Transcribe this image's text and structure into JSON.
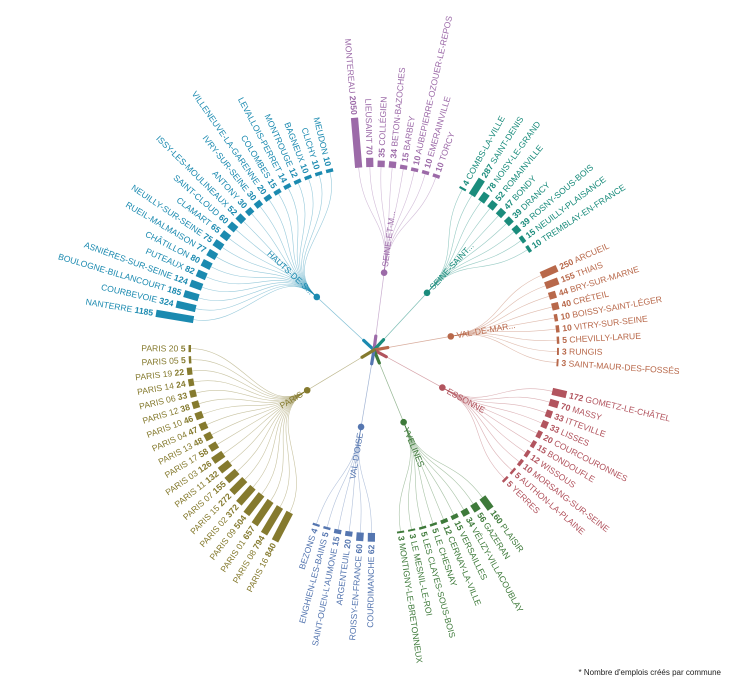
{
  "footnote": "* Nombre d'emplois créés par commune",
  "chart_data": {
    "type": "radial-dendrogram",
    "title": "",
    "value_label": "Nombre d'emplois créés par commune",
    "groups": [
      {
        "name": "HAUTS-DE-S...",
        "color": "#1b8ab0",
        "leaves": [
          {
            "name": "NANTERRE",
            "value": 1185
          },
          {
            "name": "COURBEVOIE",
            "value": 324
          },
          {
            "name": "BOULOGNE-BILLANCOURT",
            "value": 185
          },
          {
            "name": "ASNIÈRES-SUR-SEINE",
            "value": 124
          },
          {
            "name": "PUTEAUX",
            "value": 82
          },
          {
            "name": "CHÂTILLON",
            "value": 80
          },
          {
            "name": "RUEIL-MALMAISON",
            "value": 77
          },
          {
            "name": "NEUILLY-SUR-SEINE",
            "value": 75
          },
          {
            "name": "CLAMART",
            "value": 65
          },
          {
            "name": "SAINT-CLOUD",
            "value": 60
          },
          {
            "name": "ISSY-LES-MOULINEAUX",
            "value": 52
          },
          {
            "name": "ANTONY",
            "value": 30
          },
          {
            "name": "IVRY-SUR-SEINE",
            "value": 30
          },
          {
            "name": "VILLENEUVE-LA-GARENNE",
            "value": 20
          },
          {
            "name": "COLOMBES",
            "value": 15
          },
          {
            "name": "LEVALLOIS-PERRET",
            "value": 14
          },
          {
            "name": "MONTROUGE",
            "value": 12
          },
          {
            "name": "BAGNEUX",
            "value": 10
          },
          {
            "name": "CLICHY",
            "value": 10
          },
          {
            "name": "MEUDON",
            "value": 10
          }
        ]
      },
      {
        "name": "SEINE-ET-M...",
        "color": "#9c6aa8",
        "leaves": [
          {
            "name": "MONTEREAU",
            "value": 2050
          },
          {
            "name": "LIEUSAINT",
            "value": 70
          },
          {
            "name": "COLLÉGIEN",
            "value": 35
          },
          {
            "name": "BETON-BAZOCHES",
            "value": 34
          },
          {
            "name": "BARBEY",
            "value": 15
          },
          {
            "name": "AUBEPIERRE-OZOUER-LE-REPOS",
            "value": 10
          },
          {
            "name": "EMERAINVILLE",
            "value": 10
          },
          {
            "name": "TORCY",
            "value": 10
          }
        ]
      },
      {
        "name": "SEINE-SAINT...",
        "color": "#1a8c7c",
        "leaves": [
          {
            "name": "COMBS-LA-VILLE",
            "value": 4
          },
          {
            "name": "SAINT-DENIS",
            "value": 287
          },
          {
            "name": "NOISY-LE-GRAND",
            "value": 78
          },
          {
            "name": "ROMAINVILLE",
            "value": 52
          },
          {
            "name": "BONDY",
            "value": 47
          },
          {
            "name": "DRANCY",
            "value": 39
          },
          {
            "name": "ROSNY-SOUS-BOIS",
            "value": 39
          },
          {
            "name": "NEUILLY-PLAISANCE",
            "value": 15
          },
          {
            "name": "TREMBLAY-EN-FRANCE",
            "value": 10
          }
        ]
      },
      {
        "name": "VAL-DE-MAR...",
        "color": "#b8684a",
        "leaves": [
          {
            "name": "ARCUEIL",
            "value": 250
          },
          {
            "name": "THIAIS",
            "value": 155
          },
          {
            "name": "BRY-SUR-MARNE",
            "value": 44
          },
          {
            "name": "CRÉTEIL",
            "value": 40
          },
          {
            "name": "BOISSY-SAINT-LÉGER",
            "value": 10
          },
          {
            "name": "VITRY-SUR-SEINE",
            "value": 10
          },
          {
            "name": "CHEVILLY-LARUE",
            "value": 5
          },
          {
            "name": "RUNGIS",
            "value": 3
          },
          {
            "name": "SAINT-MAUR-DES-FOSSÉS",
            "value": 3
          }
        ]
      },
      {
        "name": "ESSONNE",
        "color": "#b2545e",
        "leaves": [
          {
            "name": "GOMETZ-LE-CHÂTEL",
            "value": 172
          },
          {
            "name": "MASSY",
            "value": 70
          },
          {
            "name": "ITTEVILLE",
            "value": 33
          },
          {
            "name": "LISSES",
            "value": 33
          },
          {
            "name": "COURCOURONNES",
            "value": 20
          },
          {
            "name": "BONDOUFLE",
            "value": 15
          },
          {
            "name": "WISSOUS",
            "value": 12
          },
          {
            "name": "MORSANG-SUR-SEINE",
            "value": 10
          },
          {
            "name": "AUTHON-LA-PLAINE",
            "value": 5
          },
          {
            "name": "YERRES",
            "value": 5
          }
        ]
      },
      {
        "name": "YVELINES",
        "color": "#3e7a3a",
        "leaves": [
          {
            "name": "PLAISIR",
            "value": 160
          },
          {
            "name": "GAZERAN",
            "value": 56
          },
          {
            "name": "VÉLIZY-VILLACOUBLAY",
            "value": 34
          },
          {
            "name": "VERSAILLES",
            "value": 15
          },
          {
            "name": "CERNAY-LA-VILLE",
            "value": 12
          },
          {
            "name": "LE CHESNAY",
            "value": 5
          },
          {
            "name": "LES CLAYES-SOUS-BOIS",
            "value": 5
          },
          {
            "name": "LE MESNIL-LE-ROI",
            "value": 3
          },
          {
            "name": "MONTIGNY-LE-BRETONNEUX",
            "value": 3
          }
        ]
      },
      {
        "name": "VAL-D'OISE",
        "color": "#5576b0",
        "leaves": [
          {
            "name": "COURDIMANCHE",
            "value": 62
          },
          {
            "name": "ROISSY-EN-FRANCE",
            "value": 60
          },
          {
            "name": "ARGENTEUIL",
            "value": 20
          },
          {
            "name": "SAINT-OUEN-L'AUMONE",
            "value": 15
          },
          {
            "name": "ENGHIEN-LES-BAINS",
            "value": 5
          },
          {
            "name": "BEZONS",
            "value": 4
          }
        ]
      },
      {
        "name": "PARIS",
        "color": "#857a2e",
        "leaves": [
          {
            "name": "PARIS 16",
            "value": 840
          },
          {
            "name": "PARIS 08",
            "value": 794
          },
          {
            "name": "PARIS 01",
            "value": 657
          },
          {
            "name": "PARIS 09",
            "value": 504
          },
          {
            "name": "PARIS 02",
            "value": 372
          },
          {
            "name": "PARIS 15",
            "value": 272
          },
          {
            "name": "PARIS 07",
            "value": 155
          },
          {
            "name": "PARIS 11",
            "value": 132
          },
          {
            "name": "PARIS 03",
            "value": 126
          },
          {
            "name": "PARIS 17",
            "value": 58
          },
          {
            "name": "PARIS 13",
            "value": 48
          },
          {
            "name": "PARIS 04",
            "value": 47
          },
          {
            "name": "PARIS 10",
            "value": 46
          },
          {
            "name": "PARIS 12",
            "value": 38
          },
          {
            "name": "PARIS 06",
            "value": 33
          },
          {
            "name": "PARIS 14",
            "value": 24
          },
          {
            "name": "PARIS 19",
            "value": 22
          },
          {
            "name": "PARIS 05",
            "value": 5
          },
          {
            "name": "PARIS 20",
            "value": 5
          }
        ]
      }
    ]
  }
}
